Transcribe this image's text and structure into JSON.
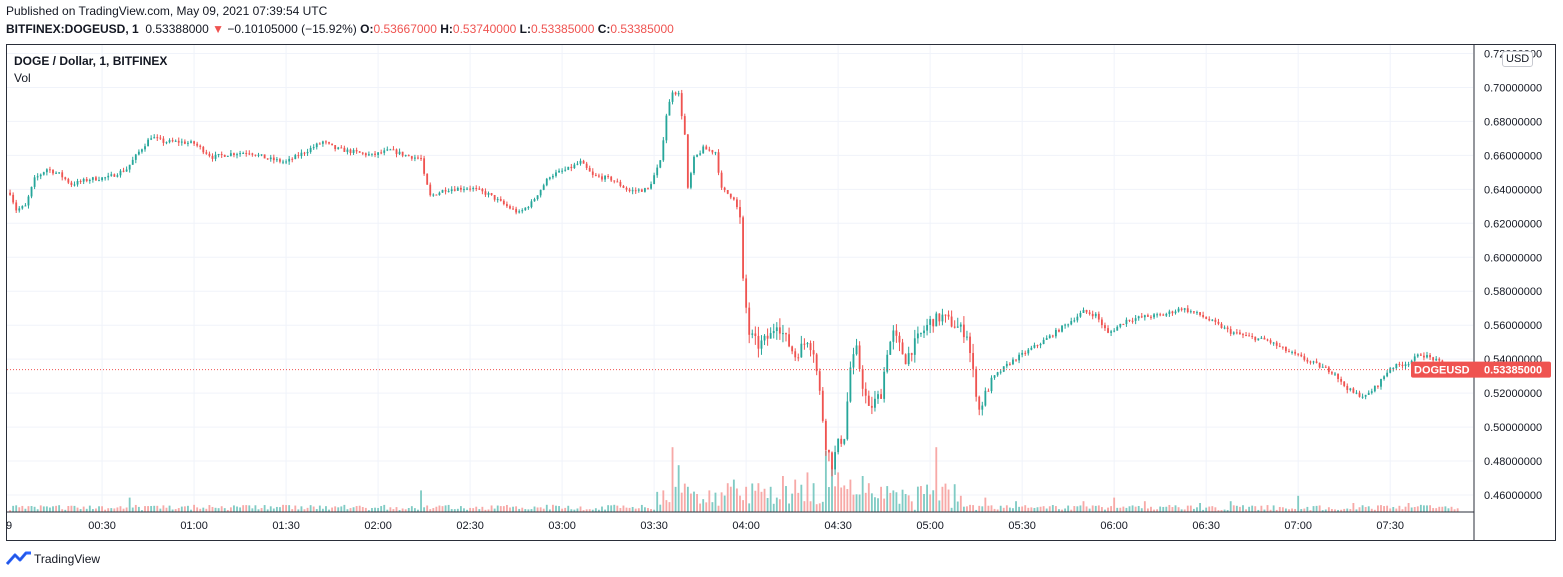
{
  "header": {
    "published": "Published on TradingView.com, May 09, 2021 07:39:54 UTC",
    "symbol": "BITFINEX:DOGEUSD, 1",
    "last": "0.53388000",
    "arrow": "▼",
    "change": "−0.10105000 (−15.92%)",
    "o_label": "O:",
    "o_value": "0.53667000",
    "h_label": "H:",
    "h_value": "0.53740000",
    "l_label": "L:",
    "l_value": "0.53385000",
    "c_label": "C:",
    "c_value": "0.53385000"
  },
  "legend": {
    "title": "DOGE / Dollar, 1, BITFINEX",
    "volume": "Vol"
  },
  "currency_badge": "USD",
  "price_tag": {
    "symbol": "DOGEUSD",
    "value": "0.53385000"
  },
  "footer": {
    "brand": "TradingView",
    "logo_icon": "tradingview-logo-icon"
  },
  "colors": {
    "up": "#26a69a",
    "down": "#ef5350",
    "grid": "#f0f3fa",
    "vol_up": "#80cbc4",
    "vol_down": "#f7a9a7"
  },
  "chart_data": {
    "type": "candlestick",
    "x_tick_labels": [
      "00:30",
      "01:00",
      "01:30",
      "02:00",
      "02:30",
      "03:00",
      "03:30",
      "04:00",
      "04:30",
      "05:00",
      "05:30",
      "06:00",
      "06:30",
      "07:00",
      "07:30"
    ],
    "x_tick_minutes": [
      30,
      60,
      90,
      120,
      150,
      180,
      210,
      240,
      270,
      300,
      330,
      360,
      390,
      420,
      450
    ],
    "first_tick_partial": "9",
    "x_range_minutes": [
      -1,
      477
    ],
    "y_tick_labels": [
      "0.46000000",
      "0.48000000",
      "0.50000000",
      "0.52000000",
      "0.54000000",
      "0.56000000",
      "0.58000000",
      "0.60000000",
      "0.62000000",
      "0.64000000",
      "0.66000000",
      "0.68000000",
      "0.70000000",
      "0.72000000"
    ],
    "y_ticks": [
      0.46,
      0.48,
      0.5,
      0.52,
      0.54,
      0.56,
      0.58,
      0.6,
      0.62,
      0.64,
      0.66,
      0.68,
      0.7,
      0.72
    ],
    "ylim": [
      0.45,
      0.725
    ],
    "last_price": 0.53385,
    "price_path_anchors": [
      [
        0,
        0.638
      ],
      [
        2,
        0.628
      ],
      [
        5,
        0.63
      ],
      [
        8,
        0.646
      ],
      [
        12,
        0.652
      ],
      [
        16,
        0.649
      ],
      [
        20,
        0.643
      ],
      [
        26,
        0.646
      ],
      [
        32,
        0.647
      ],
      [
        38,
        0.652
      ],
      [
        42,
        0.662
      ],
      [
        46,
        0.671
      ],
      [
        50,
        0.668
      ],
      [
        55,
        0.668
      ],
      [
        60,
        0.667
      ],
      [
        66,
        0.659
      ],
      [
        72,
        0.661
      ],
      [
        78,
        0.662
      ],
      [
        84,
        0.658
      ],
      [
        90,
        0.656
      ],
      [
        96,
        0.662
      ],
      [
        102,
        0.668
      ],
      [
        106,
        0.664
      ],
      [
        112,
        0.662
      ],
      [
        118,
        0.66
      ],
      [
        124,
        0.663
      ],
      [
        129,
        0.66
      ],
      [
        134,
        0.658
      ],
      [
        135,
        0.648
      ],
      [
        137,
        0.636
      ],
      [
        142,
        0.64
      ],
      [
        150,
        0.641
      ],
      [
        156,
        0.637
      ],
      [
        162,
        0.63
      ],
      [
        166,
        0.626
      ],
      [
        170,
        0.632
      ],
      [
        176,
        0.648
      ],
      [
        182,
        0.652
      ],
      [
        186,
        0.656
      ],
      [
        190,
        0.648
      ],
      [
        196,
        0.646
      ],
      [
        202,
        0.639
      ],
      [
        208,
        0.64
      ],
      [
        212,
        0.656
      ],
      [
        214,
        0.684
      ],
      [
        216,
        0.698
      ],
      [
        218,
        0.696
      ],
      [
        220,
        0.672
      ],
      [
        221,
        0.64
      ],
      [
        223,
        0.658
      ],
      [
        226,
        0.664
      ],
      [
        230,
        0.662
      ],
      [
        232,
        0.64
      ],
      [
        236,
        0.635
      ],
      [
        238,
        0.622
      ],
      [
        239,
        0.585
      ],
      [
        241,
        0.555
      ],
      [
        244,
        0.548
      ],
      [
        248,
        0.554
      ],
      [
        250,
        0.562
      ],
      [
        252,
        0.555
      ],
      [
        256,
        0.542
      ],
      [
        260,
        0.552
      ],
      [
        262,
        0.545
      ],
      [
        264,
        0.52
      ],
      [
        266,
        0.49
      ],
      [
        268,
        0.478
      ],
      [
        270,
        0.49
      ],
      [
        272,
        0.495
      ],
      [
        274,
        0.535
      ],
      [
        276,
        0.545
      ],
      [
        278,
        0.525
      ],
      [
        280,
        0.51
      ],
      [
        284,
        0.52
      ],
      [
        286,
        0.545
      ],
      [
        288,
        0.555
      ],
      [
        292,
        0.54
      ],
      [
        296,
        0.552
      ],
      [
        300,
        0.562
      ],
      [
        304,
        0.565
      ],
      [
        308,
        0.56
      ],
      [
        312,
        0.555
      ],
      [
        314,
        0.532
      ],
      [
        316,
        0.51
      ],
      [
        320,
        0.528
      ],
      [
        326,
        0.538
      ],
      [
        332,
        0.545
      ],
      [
        338,
        0.552
      ],
      [
        344,
        0.56
      ],
      [
        350,
        0.568
      ],
      [
        354,
        0.566
      ],
      [
        358,
        0.555
      ],
      [
        364,
        0.563
      ],
      [
        370,
        0.565
      ],
      [
        376,
        0.566
      ],
      [
        382,
        0.57
      ],
      [
        388,
        0.566
      ],
      [
        392,
        0.562
      ],
      [
        398,
        0.556
      ],
      [
        404,
        0.553
      ],
      [
        410,
        0.551
      ],
      [
        416,
        0.545
      ],
      [
        422,
        0.54
      ],
      [
        428,
        0.535
      ],
      [
        432,
        0.532
      ],
      [
        434,
        0.526
      ],
      [
        438,
        0.52
      ],
      [
        442,
        0.518
      ],
      [
        446,
        0.525
      ],
      [
        450,
        0.535
      ],
      [
        456,
        0.538
      ],
      [
        460,
        0.543
      ],
      [
        464,
        0.54
      ],
      [
        468,
        0.536
      ],
      [
        472,
        0.534
      ]
    ],
    "volume_spikes": [
      [
        39,
        8
      ],
      [
        134,
        12
      ],
      [
        175,
        4
      ],
      [
        177,
        4
      ],
      [
        197,
        4
      ],
      [
        213,
        12
      ],
      [
        216,
        36
      ],
      [
        218,
        26
      ],
      [
        221,
        14
      ],
      [
        224,
        10
      ],
      [
        228,
        12
      ],
      [
        234,
        16
      ],
      [
        236,
        18
      ],
      [
        240,
        14
      ],
      [
        244,
        16
      ],
      [
        248,
        14
      ],
      [
        252,
        20
      ],
      [
        256,
        18
      ],
      [
        260,
        22
      ],
      [
        262,
        16
      ],
      [
        266,
        34
      ],
      [
        268,
        26
      ],
      [
        270,
        22
      ],
      [
        274,
        18
      ],
      [
        278,
        20
      ],
      [
        280,
        16
      ],
      [
        284,
        14
      ],
      [
        288,
        12
      ],
      [
        292,
        10
      ],
      [
        298,
        10
      ],
      [
        302,
        36
      ],
      [
        304,
        14
      ],
      [
        310,
        9
      ],
      [
        318,
        8
      ],
      [
        328,
        6
      ],
      [
        350,
        6
      ],
      [
        360,
        8
      ],
      [
        370,
        6
      ],
      [
        388,
        5
      ],
      [
        398,
        6
      ],
      [
        420,
        9
      ],
      [
        438,
        5
      ],
      [
        456,
        5
      ]
    ]
  }
}
